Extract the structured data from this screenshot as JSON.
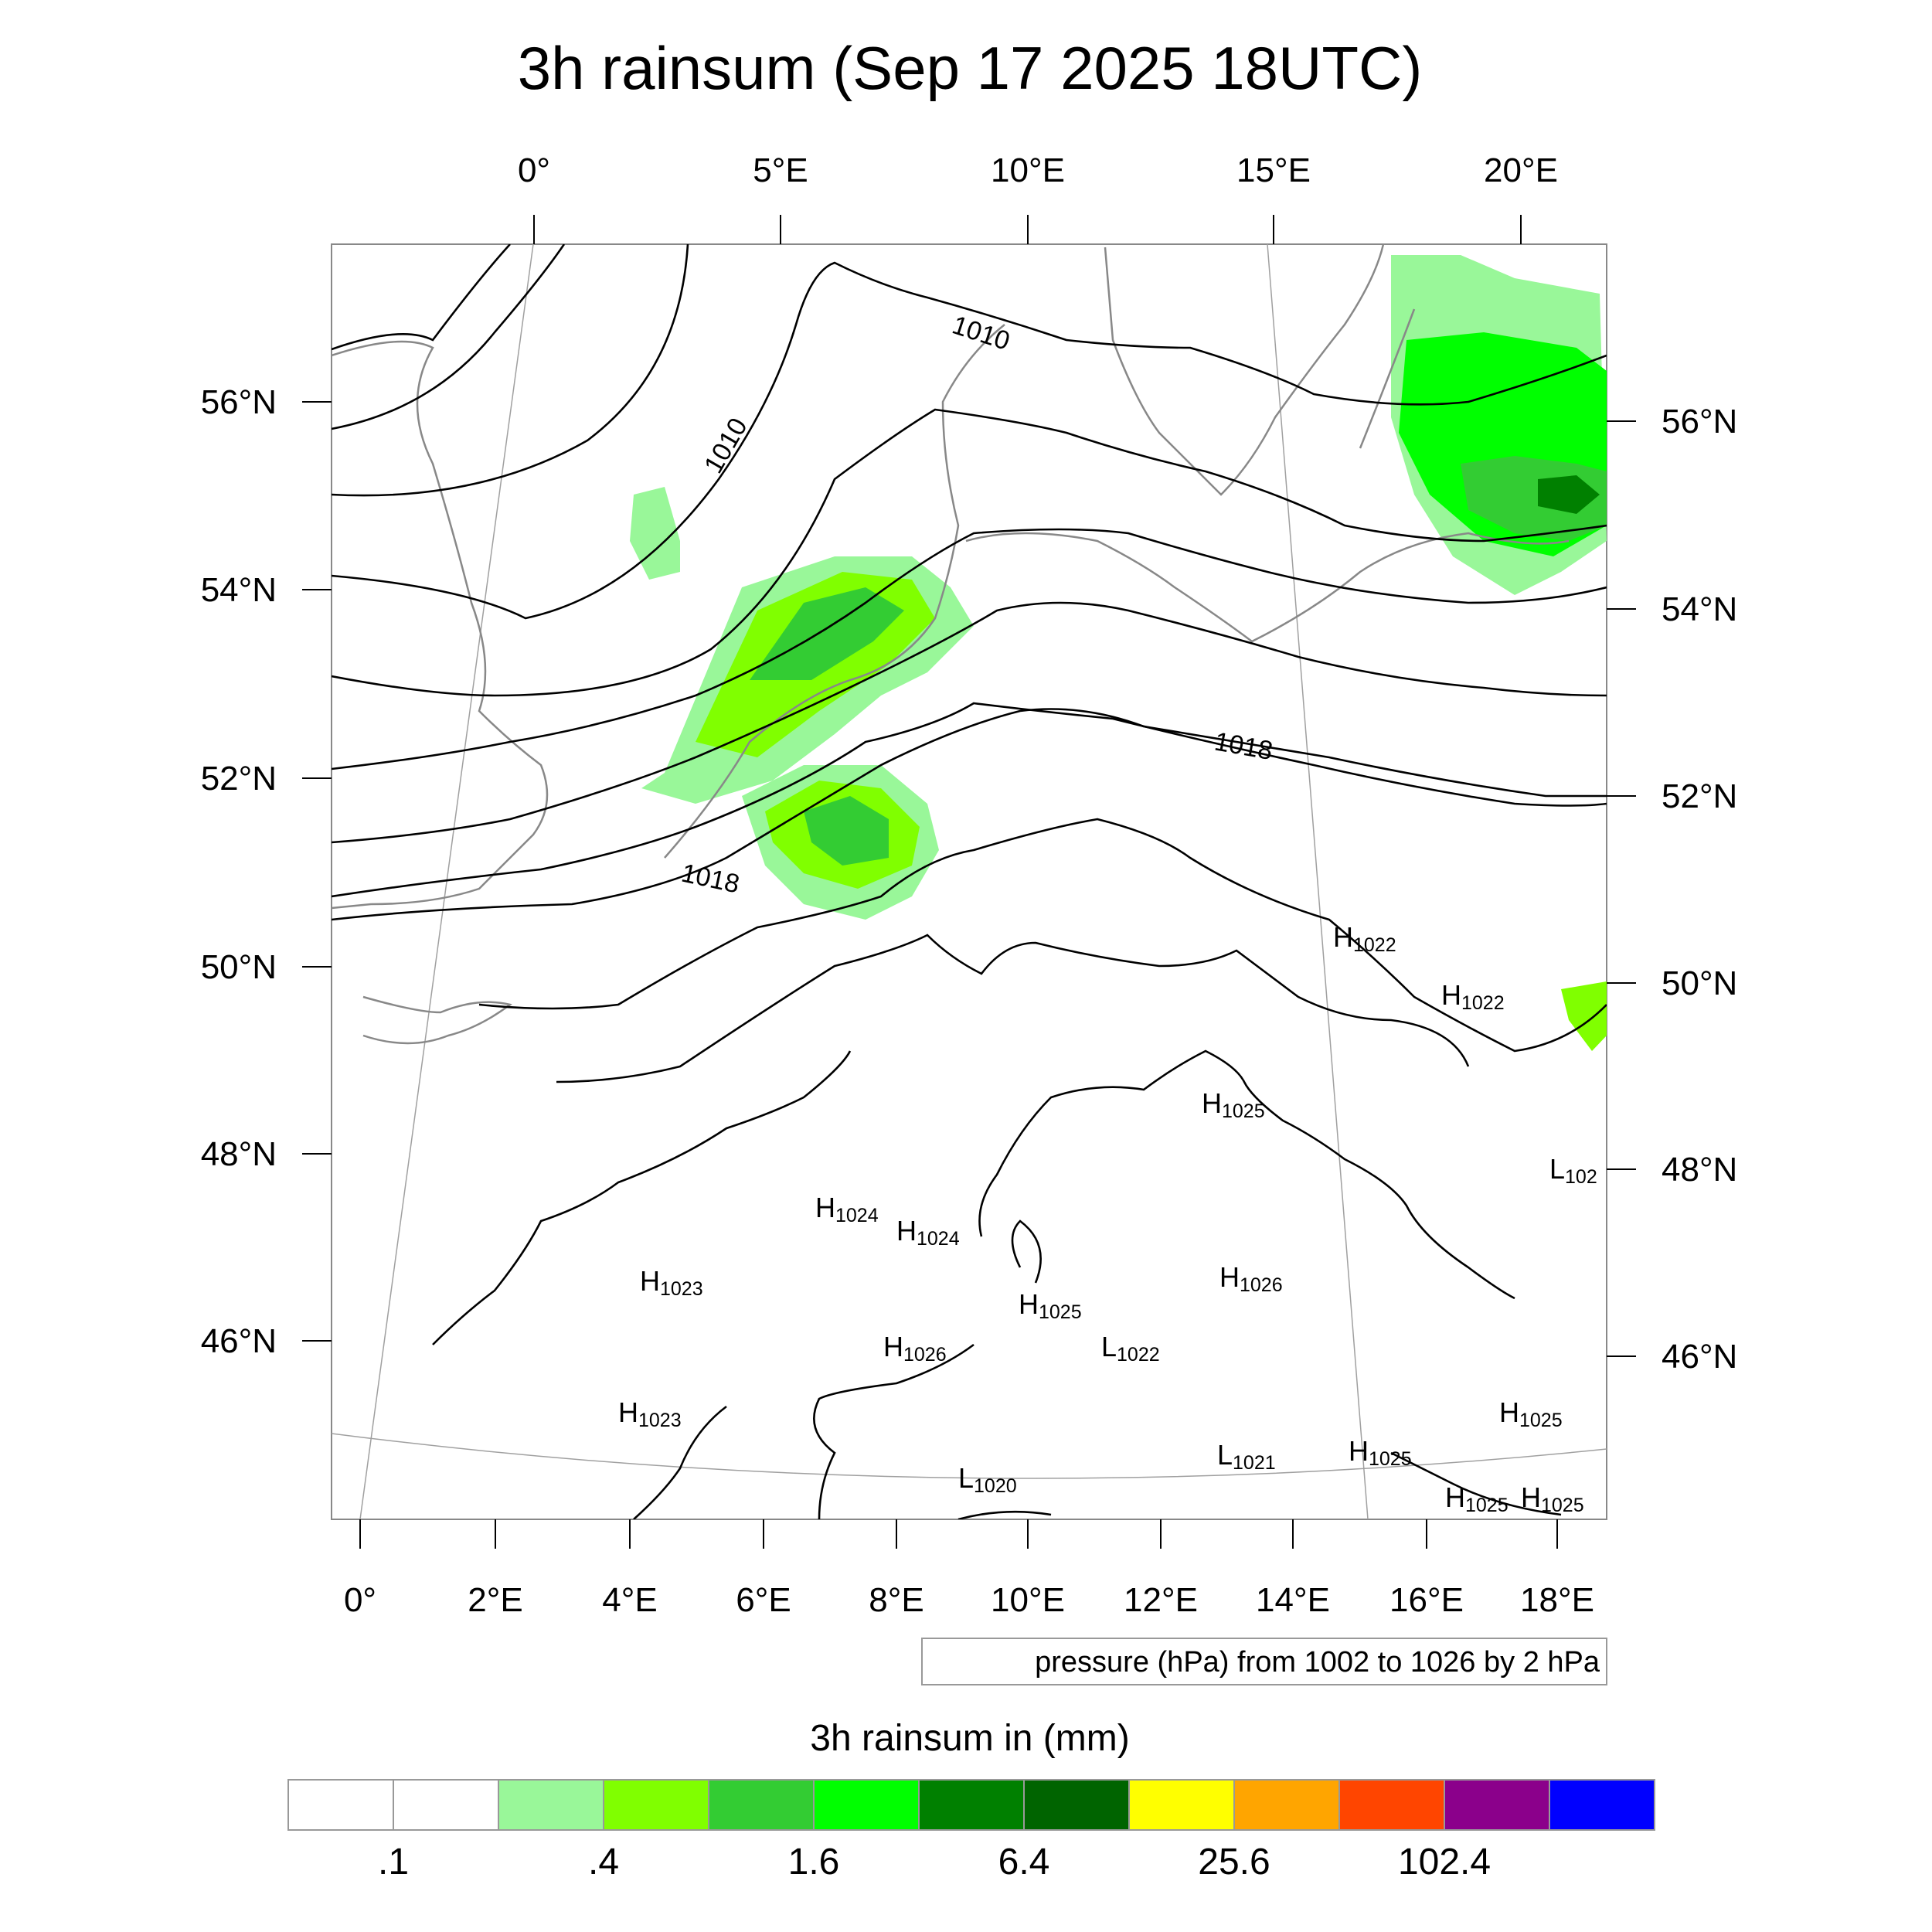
{
  "title": "3h rainsum (Sep 17 2025 18UTC)",
  "top_lon_labels": [
    "0°",
    "5°E",
    "10°E",
    "15°E",
    "20°E"
  ],
  "bottom_lon_labels": [
    "0°",
    "2°E",
    "4°E",
    "6°E",
    "8°E",
    "10°E",
    "12°E",
    "14°E",
    "16°E",
    "18°E"
  ],
  "left_lat_labels": [
    "56°N",
    "54°N",
    "52°N",
    "50°N",
    "48°N",
    "46°N"
  ],
  "right_lat_labels": [
    "56°N",
    "54°N",
    "52°N",
    "50°N",
    "48°N",
    "46°N"
  ],
  "isobar_labels": [
    "1010",
    "1010",
    "1018",
    "1018"
  ],
  "pressure_centers": [
    {
      "letter": "H",
      "value": "1022"
    },
    {
      "letter": "H",
      "value": "1022"
    },
    {
      "letter": "H",
      "value": "1025"
    },
    {
      "letter": "L",
      "value": "102"
    },
    {
      "letter": "H",
      "value": "1024"
    },
    {
      "letter": "H",
      "value": "1024"
    },
    {
      "letter": "H",
      "value": "1023"
    },
    {
      "letter": "H",
      "value": "1026"
    },
    {
      "letter": "H",
      "value": "1025"
    },
    {
      "letter": "H",
      "value": "1026"
    },
    {
      "letter": "L",
      "value": "1022"
    },
    {
      "letter": "H",
      "value": "1023"
    },
    {
      "letter": "L",
      "value": "1021"
    },
    {
      "letter": "H",
      "value": "1025"
    },
    {
      "letter": "H",
      "value": "1025"
    },
    {
      "letter": "L",
      "value": "1020"
    },
    {
      "letter": "H",
      "value": "1025"
    },
    {
      "letter": "H",
      "value": "1025"
    }
  ],
  "contour_note": "pressure (hPa) from 1002 to 1026 by 2 hPa",
  "colorbar": {
    "title": "3h rainsum in (mm)",
    "colors": [
      "#ffffff",
      "#ffffff",
      "#99f799",
      "#80ff00",
      "#33cc33",
      "#00ff00",
      "#008000",
      "#006400",
      "#ffff00",
      "#ffa500",
      "#ff4500",
      "#8b008b",
      "#0000ff"
    ],
    "tick_labels": [
      ".1",
      ".4",
      "1.6",
      "6.4",
      "25.6",
      "102.4"
    ]
  }
}
